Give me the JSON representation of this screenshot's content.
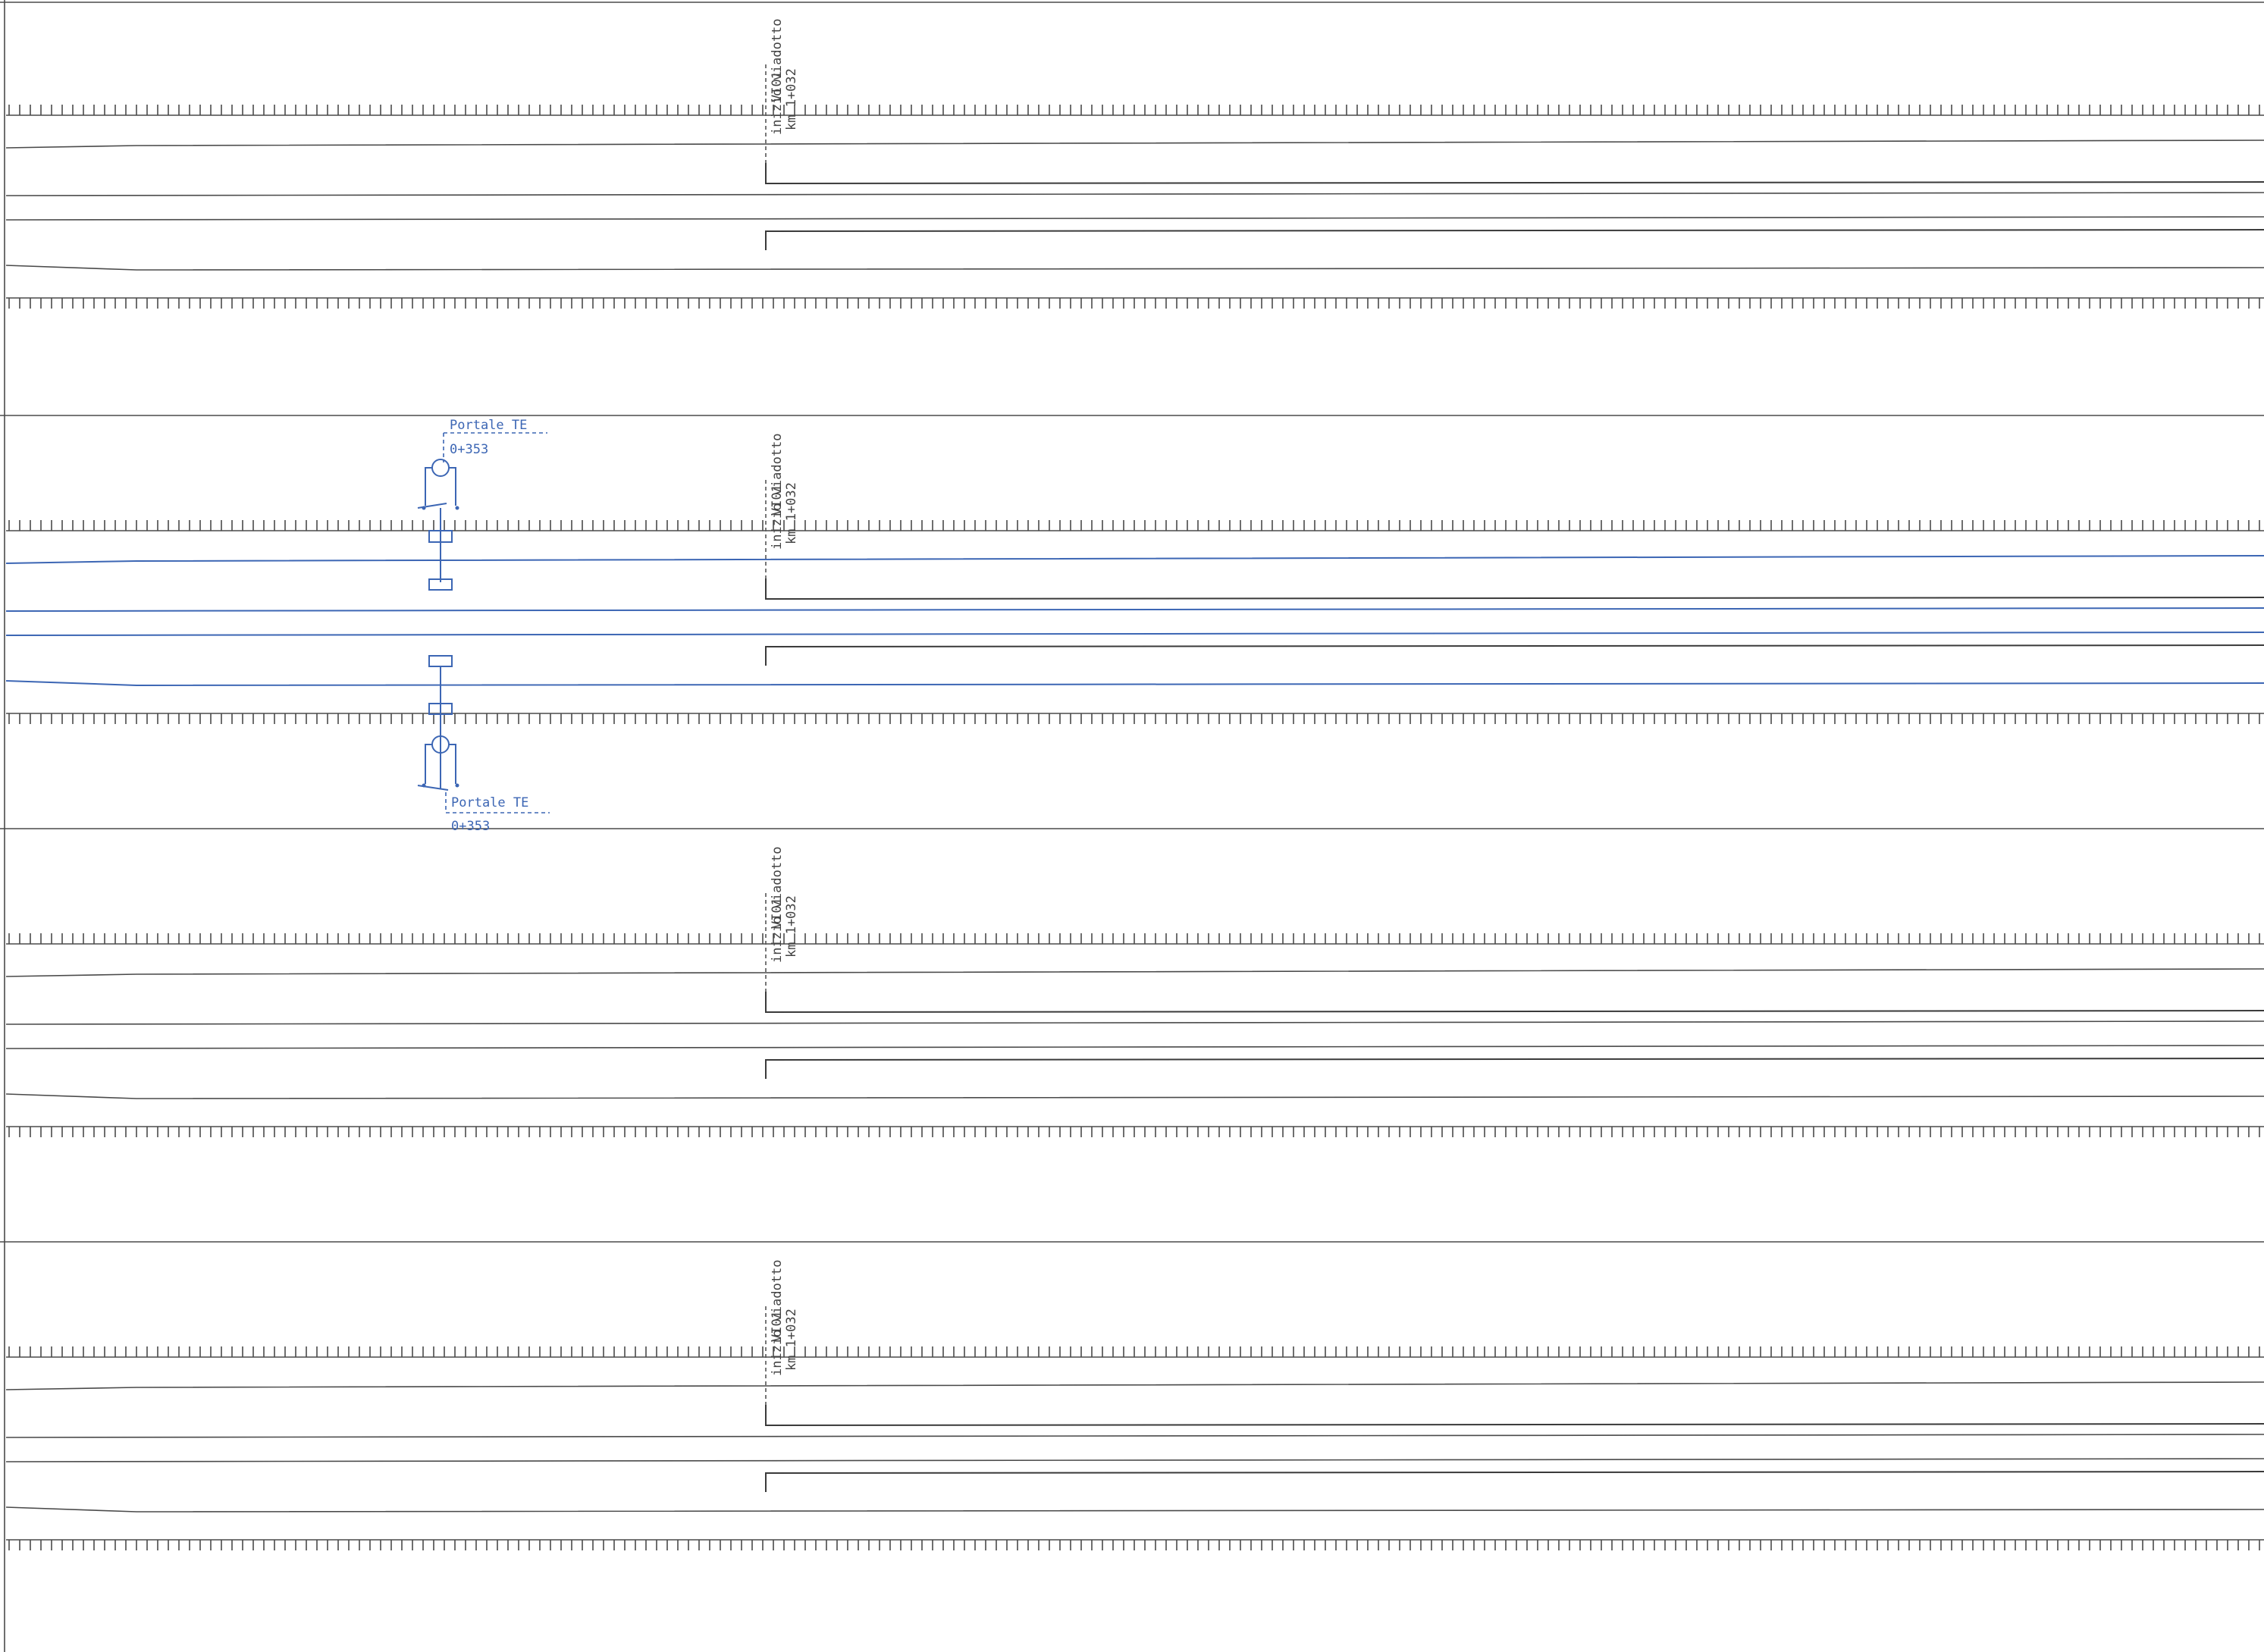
{
  "panels": [
    {
      "viaduct_label": "VI01",
      "viaduct_title": "inizio viadotto",
      "viaduct_km": "km 1+032",
      "track_color": "#3a3a3a",
      "portale": null
    },
    {
      "viaduct_label": "VI01",
      "viaduct_title": "inizio viadotto",
      "viaduct_km": "km 1+032",
      "track_color": "#3c66b4",
      "portale": {
        "top": {
          "name": "Portale TE",
          "km": "0+353"
        },
        "bottom": {
          "name": "Portale TE",
          "km": "0+353"
        }
      }
    },
    {
      "viaduct_label": "VI01",
      "viaduct_title": "inizio viadotto",
      "viaduct_km": "km 1+032",
      "track_color": "#3a3a3a",
      "portale": null
    },
    {
      "viaduct_label": "VI01",
      "viaduct_title": "inizio viadotto",
      "viaduct_km": "km 1+032",
      "track_color": "#3a3a3a",
      "portale": null
    }
  ]
}
